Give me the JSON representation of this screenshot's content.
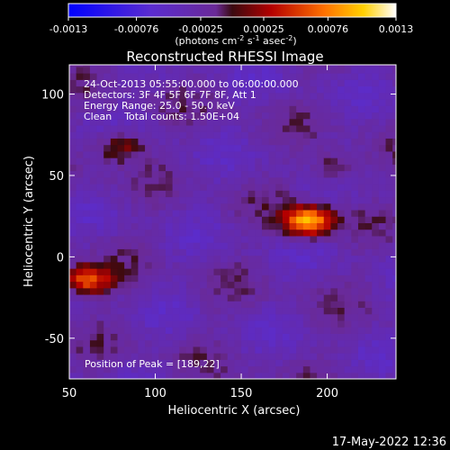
{
  "colorbar": {
    "ticks": [
      "-0.0013",
      "-0.00076",
      "-0.00025",
      "0.00025",
      "0.00076",
      "0.0013"
    ],
    "tick_values": [
      -0.0013,
      -0.00076,
      -0.00025,
      0.00025,
      0.00076,
      0.0013
    ],
    "range": [
      -0.0013,
      0.0013
    ],
    "unit_main": "(photons cm",
    "unit_sup1": "-2",
    "unit_mid1": " s",
    "unit_sup2": "-1",
    "unit_mid2": " asec",
    "unit_sup3": "-2",
    "unit_end": ")"
  },
  "chart_data": {
    "type": "heatmap",
    "title": "Reconstructed RHESSI Image",
    "xlabel": "Heliocentric X (arcsec)",
    "ylabel": "Heliocentric Y (arcsec)",
    "xlim": [
      50,
      240
    ],
    "ylim": [
      -75,
      118
    ],
    "xticks": [
      50,
      100,
      150,
      200
    ],
    "yticks": [
      -50,
      0,
      50,
      100
    ],
    "peak": [
      189,
      22
    ],
    "sources": [
      {
        "x": 189,
        "y": 22,
        "amplitude": 0.0013
      },
      {
        "x": 60,
        "y": -14,
        "amplitude": 0.00095
      },
      {
        "x": 80,
        "y": 68,
        "amplitude": 0.0006
      },
      {
        "x": 205,
        "y": 55,
        "amplitude": 0.00045
      }
    ],
    "annotations": [
      "24-Oct-2013 05:55:00.000 to 06:00:00.000",
      "Detectors: 3F 4F 5F 6F 7F 8F, Att 1",
      "Energy Range: 25.0 - 50.0 keV",
      "Clean    Total counts: 1.50E+04"
    ],
    "peak_label": "Position of Peak = [189,22]"
  },
  "footer": {
    "timestamp": "17-May-2022 12:36"
  }
}
